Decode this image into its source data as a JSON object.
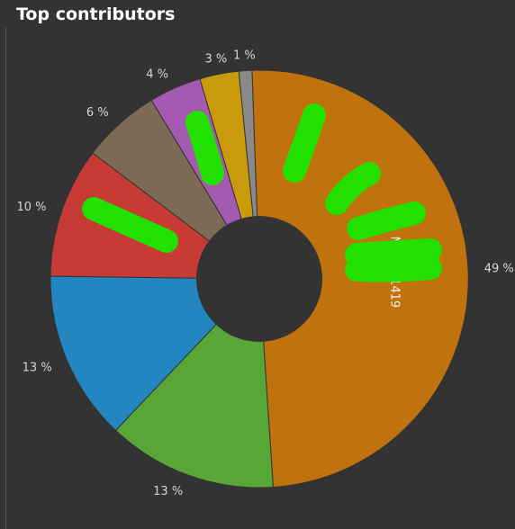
{
  "panel": {
    "title": "Top contributors"
  },
  "chart_data": {
    "type": "pie",
    "title": "Top contributors",
    "donut": true,
    "start_angle_deg": 92,
    "slices": [
      {
        "name": "Molayo1419",
        "value": 49,
        "label": "49 %",
        "color": "#c0720e"
      },
      {
        "name": "",
        "value": 13,
        "label": "13 %",
        "color": "#58a636"
      },
      {
        "name": "",
        "value": 13,
        "label": "13 %",
        "color": "#2386c1"
      },
      {
        "name": "",
        "value": 10,
        "label": "10 %",
        "color": "#c63b33"
      },
      {
        "name": "",
        "value": 6,
        "label": "6 %",
        "color": "#7d6a54"
      },
      {
        "name": "",
        "value": 4,
        "label": "4 %",
        "color": "#a45ab0"
      },
      {
        "name": "",
        "value": 3,
        "label": "3 %",
        "color": "#c89a0c"
      },
      {
        "name": "",
        "value": 1,
        "label": "1 %",
        "color": "#8a8a8a"
      }
    ],
    "redaction_color": "#22e000"
  }
}
